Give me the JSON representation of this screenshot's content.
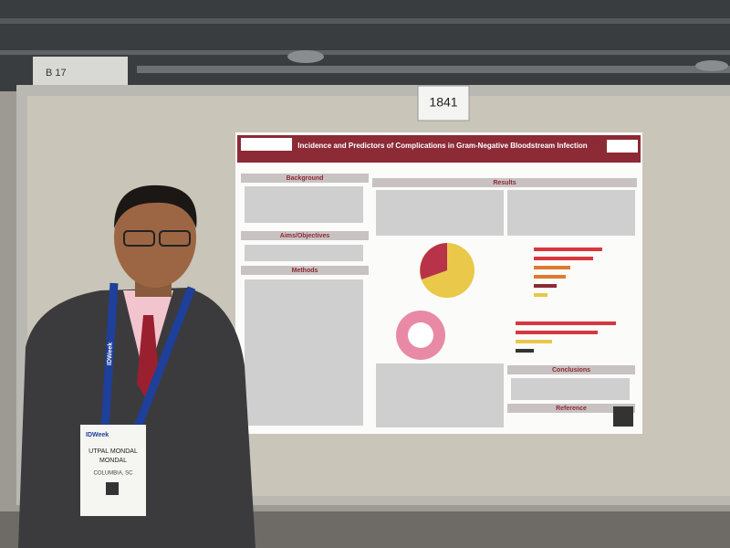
{
  "scene": {
    "booth_sign": "B 17",
    "board_number": "1841",
    "poster": {
      "title": "Incidence and Predictors of Complications in Gram-Negative Bloodstream Infection",
      "sections": [
        "Background",
        "Aims/Objectives",
        "Methods",
        "Results",
        "Conclusions",
        "Reference"
      ]
    },
    "badge": {
      "event": "IDWeek",
      "name": "UTPAL MONDAL",
      "surname": "MONDAL",
      "city": "COLUMBIA, SC"
    },
    "lanyard": "IDWeek"
  }
}
